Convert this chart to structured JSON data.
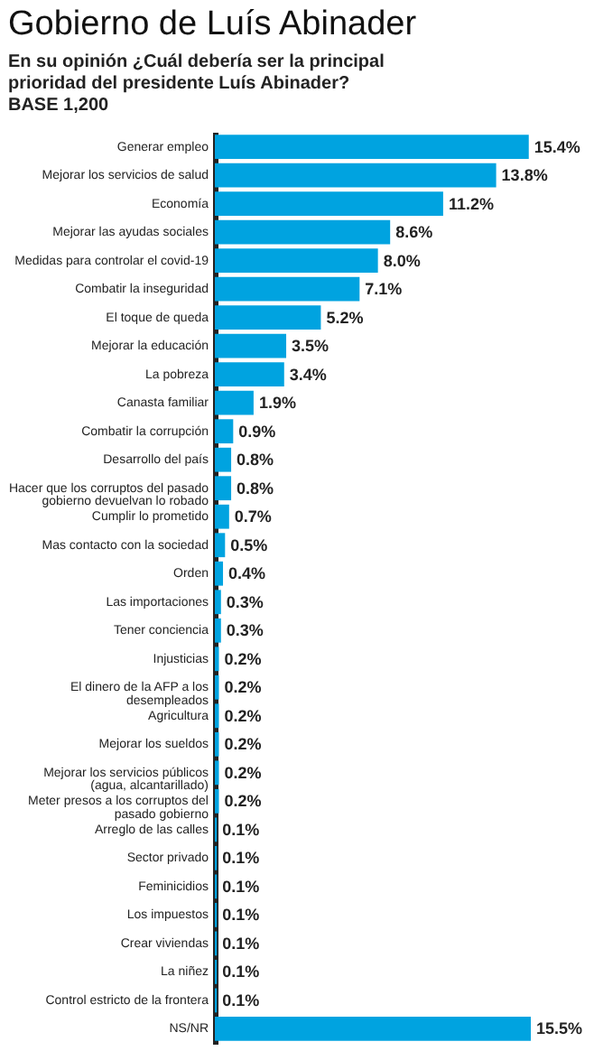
{
  "chart_data": {
    "type": "bar",
    "orientation": "horizontal",
    "title": "Gobierno de Luís Abinader",
    "subtitle": "En su opinión ¿Cuál debería ser la principal prioridad del presidente Luís Abinader?",
    "annotations": [
      "BASE 1,200"
    ],
    "categories": [
      "Generar empleo",
      "Mejorar los servicios de salud",
      "Economía",
      "Mejorar las ayudas sociales",
      "Medidas para controlar el covid-19",
      "Combatir la inseguridad",
      "El toque de queda",
      "Mejorar la educación",
      "La pobreza",
      "Canasta familiar",
      "Combatir la corrupción",
      "Desarrollo del país",
      "Hacer que los corruptos del pasado gobierno devuelvan lo robado",
      "Cumplir lo prometido",
      "Mas contacto con la sociedad",
      "Orden",
      "Las importaciones",
      "Tener conciencia",
      "Injusticias",
      "El dinero de la AFP a los desempleados",
      "Agricultura",
      "Mejorar los sueldos",
      "Mejorar los servicios públicos (agua, alcantarillado)",
      "Meter presos a los corruptos del pasado gobierno",
      "Arreglo de las calles",
      "Sector privado",
      "Feminicidios",
      "Los impuestos",
      "Crear viviendas",
      "La niñez",
      "Control estricto de la frontera",
      "NS/NR"
    ],
    "values": [
      15.4,
      13.8,
      11.2,
      8.6,
      8.0,
      7.1,
      5.2,
      3.5,
      3.4,
      1.9,
      0.9,
      0.8,
      0.8,
      0.7,
      0.5,
      0.4,
      0.3,
      0.3,
      0.2,
      0.2,
      0.2,
      0.2,
      0.2,
      0.2,
      0.1,
      0.1,
      0.1,
      0.1,
      0.1,
      0.1,
      0.1,
      15.5
    ],
    "value_labels": [
      "15.4%",
      "13.8%",
      "11.2%",
      "8.6%",
      "8.0%",
      "7.1%",
      "5.2%",
      "3.5%",
      "3.4%",
      "1.9%",
      "0.9%",
      "0.8%",
      "0.8%",
      "0.7%",
      "0.5%",
      "0.4%",
      "0.3%",
      "0.3%",
      "0.2%",
      "0.2%",
      "0.2%",
      "0.2%",
      "0.2%",
      "0.2%",
      "0.1%",
      "0.1%",
      "0.1%",
      "0.1%",
      "0.1%",
      "0.1%",
      "0.1%",
      "15.5%"
    ],
    "color": "#00a3e0"
  }
}
